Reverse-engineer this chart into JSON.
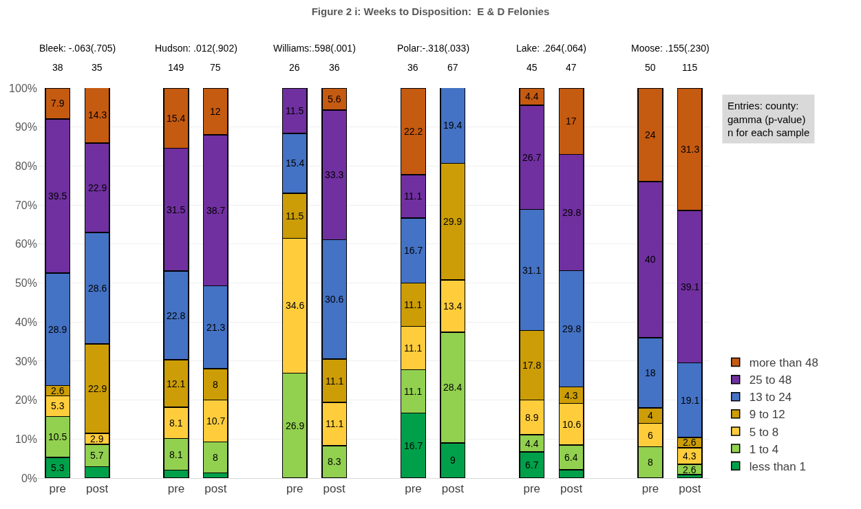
{
  "chart_data": {
    "type": "bar",
    "stacked": true,
    "title": "Figure 2 i: Weeks to Disposition:  E & D Felonies",
    "categories": [
      "pre",
      "post",
      null,
      "pre",
      "post",
      null,
      "pre",
      "post",
      null,
      "pre",
      "post",
      null,
      "pre",
      "post",
      null,
      "pre",
      "post"
    ],
    "series": [
      {
        "name": "less than 1",
        "color": "#00a04a",
        "values": [
          5.3,
          2.9,
          null,
          2,
          1.3,
          null,
          null,
          null,
          null,
          16.7,
          9,
          null,
          6.7,
          2.1,
          null,
          null,
          0.9
        ],
        "value_labels": [
          "5.3",
          null,
          null,
          null,
          null,
          null,
          null,
          null,
          null,
          "16.7",
          "9",
          null,
          "6.7",
          null,
          null,
          null,
          null
        ]
      },
      {
        "name": "1 to 4",
        "color": "#92d050",
        "values": [
          10.5,
          5.7,
          null,
          8.1,
          8,
          null,
          26.9,
          8.3,
          null,
          11.1,
          28.4,
          null,
          4.4,
          6.4,
          null,
          8,
          2.6
        ],
        "value_labels": [
          "10.5",
          "5.7",
          null,
          "8.1",
          "8",
          null,
          "26.9",
          "8.3",
          null,
          "11.1",
          "28.4",
          null,
          "4.4",
          "6.4",
          null,
          "8",
          "2.6"
        ]
      },
      {
        "name": "5 to 8",
        "color": "#ffcd3c",
        "values": [
          5.3,
          2.9,
          null,
          8.1,
          10.7,
          null,
          34.6,
          11.1,
          null,
          11.1,
          13.4,
          null,
          8.9,
          10.6,
          null,
          6,
          4.3
        ],
        "value_labels": [
          "5.3",
          "2.9",
          null,
          "8.1",
          "10.7",
          null,
          "34.6",
          "11.1",
          null,
          "11.1",
          "13.4",
          null,
          "8.9",
          "10.6",
          null,
          "6",
          "4.3"
        ]
      },
      {
        "name": "9 to 12",
        "color": "#cc9d06",
        "values": [
          2.6,
          22.9,
          null,
          12.1,
          8,
          null,
          11.5,
          11.1,
          null,
          11.1,
          29.9,
          null,
          17.8,
          4.3,
          null,
          4,
          2.6
        ],
        "value_labels": [
          "2.6",
          "22.9",
          null,
          "12.1",
          "8",
          null,
          "11.5",
          "11.1",
          null,
          "11.1",
          "29.9",
          null,
          "17.8",
          "4.3",
          null,
          "4",
          "2.6"
        ]
      },
      {
        "name": "13 to 24",
        "color": "#4472c4",
        "values": [
          28.9,
          28.6,
          null,
          22.8,
          21.3,
          null,
          15.4,
          30.6,
          null,
          16.7,
          19.4,
          null,
          31.1,
          29.8,
          null,
          18,
          19.1
        ],
        "value_labels": [
          "28.9",
          "28.6",
          null,
          "22.8",
          "21.3",
          null,
          "15.4",
          "30.6",
          null,
          "16.7",
          "19.4",
          null,
          "31.1",
          "29.8",
          null,
          "18",
          "19.1"
        ]
      },
      {
        "name": "25 to 48",
        "color": "#7030a0",
        "values": [
          39.5,
          22.9,
          null,
          31.5,
          38.7,
          null,
          11.5,
          33.3,
          null,
          11.1,
          null,
          null,
          26.7,
          29.8,
          null,
          40,
          39.1
        ],
        "value_labels": [
          "39.5",
          "22.9",
          null,
          "31.5",
          "38.7",
          null,
          "11.5",
          "33.3",
          null,
          "11.1",
          null,
          null,
          "26.7",
          "29.8",
          null,
          "40",
          "39.1"
        ]
      },
      {
        "name": "more than 48",
        "color": "#c55a11",
        "values": [
          7.9,
          14.3,
          null,
          15.4,
          12,
          null,
          null,
          5.6,
          null,
          22.2,
          null,
          null,
          4.4,
          17,
          null,
          24,
          31.3
        ],
        "value_labels": [
          "7.9",
          "14.3",
          null,
          "15.4",
          "12",
          null,
          null,
          "5.6",
          null,
          "22.2",
          null,
          null,
          "4.4",
          "17",
          null,
          "24",
          "31.3"
        ]
      }
    ],
    "ylim": [
      0,
      100
    ],
    "yticks": [
      {
        "value": 0,
        "label": "0%"
      },
      {
        "value": 10,
        "label": "10%"
      },
      {
        "value": 20,
        "label": "20%"
      },
      {
        "value": 30,
        "label": "30%"
      },
      {
        "value": 40,
        "label": "40%"
      },
      {
        "value": 50,
        "label": "50%"
      },
      {
        "value": 60,
        "label": "60%"
      },
      {
        "value": 70,
        "label": "70%"
      },
      {
        "value": 80,
        "label": "80%"
      },
      {
        "value": 90,
        "label": "90%"
      },
      {
        "value": 100,
        "label": "100%"
      }
    ],
    "grid": "y",
    "legend": "bottom right",
    "annotations": [
      "Bleek: -.063(.705)",
      "Hudson: .012(.902)",
      "Williams:.598(.001)",
      "Polar:-.318(.033)",
      "Lake: .264(.064)",
      "Moose: .155(.230)",
      "38",
      "35",
      "149",
      "75",
      "26",
      "36",
      "36",
      "67",
      "45",
      "47",
      "50",
      "115",
      "Entries: county:\ngamma (p-value)\nn for each sample"
    ]
  }
}
